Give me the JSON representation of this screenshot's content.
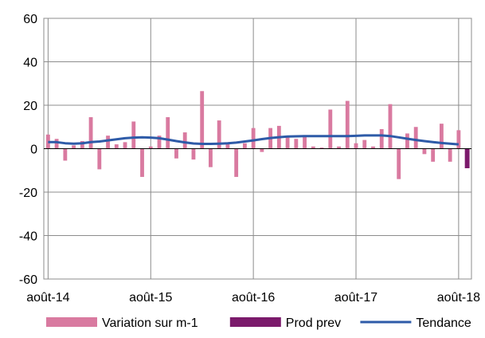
{
  "chart_data": {
    "type": "bar",
    "title": "",
    "xlabel": "",
    "ylabel": "",
    "ylim": [
      -60,
      60
    ],
    "y_ticks": [
      60,
      40,
      20,
      0,
      -20,
      -40,
      -60
    ],
    "x_tick_labels": [
      "août-14",
      "août-15",
      "août-16",
      "août-17",
      "août-18"
    ],
    "x_tick_indices": [
      0,
      12,
      24,
      36,
      48
    ],
    "grid": true,
    "legend_position": "bottom",
    "series": [
      {
        "name": "Variation sur m-1",
        "kind": "bar",
        "color": "#d97aa0",
        "values": [
          6.5,
          4.5,
          -5.5,
          1.5,
          3.5,
          14.5,
          -9.5,
          6,
          2,
          3,
          12.5,
          -13,
          1,
          6,
          14.5,
          -4.5,
          7.5,
          -5,
          26.5,
          -8.5,
          13,
          2,
          -13,
          2.5,
          9.5,
          -1.5,
          9.5,
          10.5,
          6,
          4.5,
          5.5,
          1,
          0.5,
          18,
          1,
          22,
          2.5,
          4,
          1,
          9,
          20.5,
          -14,
          7,
          10,
          -2.5,
          -6,
          11.5,
          -6,
          8.5
        ]
      },
      {
        "name": "Prod prev",
        "kind": "bar",
        "color": "#7b1a6b",
        "values": [
          -9
        ]
      },
      {
        "name": "Tendance",
        "kind": "line",
        "color": "#2e5ba8",
        "values": [
          3,
          3,
          2.5,
          2.3,
          2.5,
          3,
          3.3,
          3.8,
          4.3,
          4.8,
          5.1,
          5.2,
          5.1,
          4.8,
          4.2,
          3.5,
          2.9,
          2.4,
          2.2,
          2.2,
          2.3,
          2.5,
          2.8,
          3.3,
          3.8,
          4.4,
          4.9,
          5.3,
          5.6,
          5.7,
          5.8,
          5.8,
          5.8,
          5.8,
          5.8,
          5.8,
          5.9,
          6.1,
          6.1,
          6.1,
          5.8,
          5.2,
          4.6,
          4,
          3.5,
          3,
          2.6,
          2.3,
          2
        ]
      }
    ]
  }
}
